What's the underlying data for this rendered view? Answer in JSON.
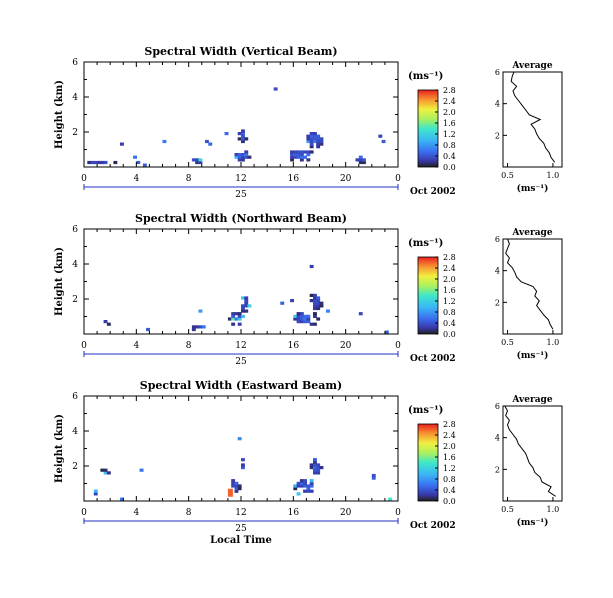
{
  "chart_data": [
    {
      "type": "heatmap",
      "title": "Spectral Width (Vertical Beam)",
      "ylabel": "Height (km)",
      "x_ticks": [
        "0",
        "4",
        "8",
        "12",
        "16",
        "20",
        "0"
      ],
      "y_ticks": [
        "2",
        "4",
        "6"
      ],
      "day_label": "25",
      "date_label": "Oct 2002",
      "colorbar_unit": "(ms⁻¹)",
      "colorbar_ticks": [
        "0.0",
        "0.4",
        "0.8",
        "1.2",
        "1.6",
        "2.0",
        "2.4",
        "2.8"
      ],
      "xlim": [
        0,
        24
      ],
      "ylim": [
        0,
        6
      ],
      "vmax": 2.8,
      "blobs": [
        [
          1.2,
          0.2,
          1.2,
          0.12,
          0.25
        ],
        [
          12,
          0.6,
          0.6,
          0.35,
          0.45
        ],
        [
          12,
          1.8,
          0.35,
          0.45,
          0.35
        ],
        [
          16.5,
          0.6,
          1.2,
          0.35,
          0.4
        ],
        [
          17.5,
          1.5,
          0.7,
          0.5,
          0.4
        ],
        [
          8.5,
          0.3,
          0.6,
          0.15,
          0.35
        ],
        [
          21,
          0.3,
          0.8,
          0.12,
          0.3
        ]
      ],
      "average_title": "Average",
      "average_xlabel": "(ms⁻¹)",
      "average_x_ticks": [
        "0.5",
        "1.0"
      ],
      "average_xlim": [
        0.45,
        1.1
      ],
      "average_profile": {
        "height": [
          0.3,
          0.6,
          0.9,
          1.2,
          1.5,
          1.8,
          2.1,
          2.4,
          2.7,
          3.0,
          3.3,
          3.6,
          3.9,
          4.2,
          4.5,
          4.8,
          5.1,
          5.4,
          5.7,
          6.0
        ],
        "value": [
          1.02,
          0.98,
          0.96,
          0.92,
          0.9,
          0.85,
          0.82,
          0.8,
          0.76,
          0.86,
          0.74,
          0.7,
          0.66,
          0.62,
          0.58,
          0.56,
          0.6,
          0.54,
          0.55,
          0.57
        ]
      }
    },
    {
      "type": "heatmap",
      "title": "Spectral Width (Northward Beam)",
      "ylabel": "Height (km)",
      "x_ticks": [
        "0",
        "4",
        "8",
        "12",
        "16",
        "20",
        "0"
      ],
      "y_ticks": [
        "2",
        "4",
        "6"
      ],
      "day_label": "25",
      "date_label": "Oct 2002",
      "colorbar_unit": "(ms⁻¹)",
      "colorbar_ticks": [
        "0.0",
        "0.4",
        "0.8",
        "1.2",
        "1.6",
        "2.0",
        "2.4",
        "2.8"
      ],
      "xlim": [
        0,
        24
      ],
      "ylim": [
        0,
        6
      ],
      "vmax": 2.8,
      "blobs": [
        [
          11.5,
          0.8,
          0.6,
          0.4,
          0.45
        ],
        [
          12.2,
          1.6,
          0.4,
          0.5,
          0.35
        ],
        [
          16.8,
          0.8,
          1.0,
          0.45,
          0.4
        ],
        [
          17.6,
          1.8,
          0.5,
          0.5,
          0.35
        ],
        [
          8.5,
          0.3,
          0.5,
          0.15,
          0.3
        ],
        [
          1.5,
          0.5,
          0.3,
          0.2,
          0.3
        ]
      ],
      "average_title": "Average",
      "average_xlabel": "(ms⁻¹)",
      "average_x_ticks": [
        "0.5",
        "1.0"
      ],
      "average_xlim": [
        0.45,
        1.1
      ],
      "average_profile": {
        "height": [
          0.3,
          0.6,
          0.9,
          1.2,
          1.5,
          1.8,
          2.1,
          2.4,
          2.7,
          3.0,
          3.3,
          3.6,
          3.9,
          4.2,
          4.5,
          4.8,
          5.1,
          5.4,
          5.7,
          6.0
        ],
        "value": [
          1.0,
          0.97,
          0.95,
          0.9,
          0.86,
          0.82,
          0.85,
          0.8,
          0.82,
          0.78,
          0.65,
          0.6,
          0.58,
          0.55,
          0.5,
          0.52,
          0.48,
          0.5,
          0.52,
          0.5
        ]
      }
    },
    {
      "type": "heatmap",
      "title": "Spectral Width (Eastward Beam)",
      "ylabel": "Height (km)",
      "xlabel": "Local Time",
      "x_ticks": [
        "0",
        "4",
        "8",
        "12",
        "16",
        "20",
        "0"
      ],
      "y_ticks": [
        "2",
        "4",
        "6"
      ],
      "day_label": "25",
      "date_label": "Oct 2002",
      "colorbar_unit": "(ms⁻¹)",
      "colorbar_ticks": [
        "0.0",
        "0.4",
        "0.8",
        "1.2",
        "1.6",
        "2.0",
        "2.4",
        "2.8"
      ],
      "xlim": [
        0,
        24
      ],
      "ylim": [
        0,
        6
      ],
      "vmax": 2.8,
      "blobs": [
        [
          11.4,
          0.8,
          0.4,
          0.4,
          0.35
        ],
        [
          12,
          2.0,
          0.2,
          0.6,
          0.3
        ],
        [
          16.8,
          0.8,
          0.9,
          0.45,
          0.4
        ],
        [
          17.6,
          1.8,
          0.5,
          0.5,
          0.35
        ],
        [
          1.5,
          1.6,
          0.4,
          0.15,
          0.25
        ],
        [
          22,
          1.3,
          0.3,
          0.2,
          0.3
        ]
      ],
      "hot_spot": [
        11.0,
        0.45,
        2.6
      ],
      "average_title": "Average",
      "average_xlabel": "(ms⁻¹)",
      "average_x_ticks": [
        "0.5",
        "1.0"
      ],
      "average_xlim": [
        0.45,
        1.1
      ],
      "average_profile": {
        "height": [
          0.3,
          0.6,
          0.9,
          1.2,
          1.5,
          1.8,
          2.1,
          2.4,
          2.7,
          3.0,
          3.3,
          3.6,
          3.9,
          4.2,
          4.5,
          4.8,
          5.1,
          5.4,
          5.7,
          6.0
        ],
        "value": [
          1.03,
          0.95,
          0.98,
          0.88,
          0.86,
          0.8,
          0.78,
          0.74,
          0.72,
          0.7,
          0.66,
          0.62,
          0.6,
          0.56,
          0.52,
          0.5,
          0.52,
          0.48,
          0.5,
          0.47
        ]
      }
    }
  ]
}
